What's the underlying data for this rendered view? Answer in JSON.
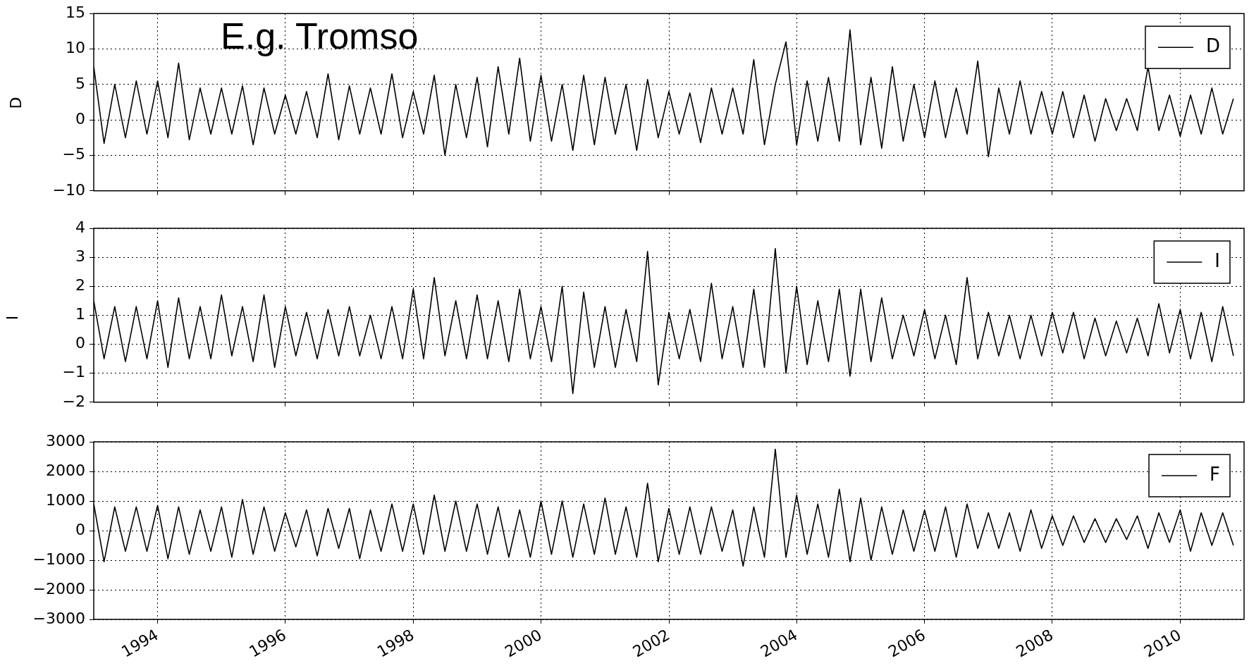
{
  "chart_data": [
    {
      "type": "line",
      "title": "E.g. Tromso",
      "ylabel": "D",
      "x": [
        "1993-01",
        "1993-03",
        "1993-05",
        "1993-07",
        "1993-09",
        "1993-11",
        "1994-01",
        "1994-03",
        "1994-05",
        "1994-07",
        "1994-09",
        "1994-11",
        "1995-01",
        "1995-03",
        "1995-05",
        "1995-07",
        "1995-09",
        "1995-11",
        "1996-01",
        "1996-03",
        "1996-05",
        "1996-07",
        "1996-09",
        "1996-11",
        "1997-01",
        "1997-03",
        "1997-05",
        "1997-07",
        "1997-09",
        "1997-11",
        "1998-01",
        "1998-03",
        "1998-05",
        "1998-07",
        "1998-09",
        "1998-11",
        "1999-01",
        "1999-03",
        "1999-05",
        "1999-07",
        "1999-09",
        "1999-11",
        "2000-01",
        "2000-03",
        "2000-05",
        "2000-07",
        "2000-09",
        "2000-11",
        "2001-01",
        "2001-03",
        "2001-05",
        "2001-07",
        "2001-09",
        "2001-11",
        "2002-01",
        "2002-03",
        "2002-05",
        "2002-07",
        "2002-09",
        "2002-11",
        "2003-01",
        "2003-03",
        "2003-05",
        "2003-07",
        "2003-09",
        "2003-11",
        "2004-01",
        "2004-03",
        "2004-05",
        "2004-07",
        "2004-09",
        "2004-11",
        "2005-01",
        "2005-03",
        "2005-05",
        "2005-07",
        "2005-09",
        "2005-11",
        "2006-01",
        "2006-03",
        "2006-05",
        "2006-07",
        "2006-09",
        "2006-11",
        "2007-01",
        "2007-03",
        "2007-05",
        "2007-07",
        "2007-09",
        "2007-11",
        "2008-01",
        "2008-03",
        "2008-05",
        "2008-07",
        "2008-09",
        "2008-11",
        "2009-01",
        "2009-03",
        "2009-05",
        "2009-07",
        "2009-09",
        "2009-11",
        "2010-01",
        "2010-03",
        "2010-05",
        "2010-07",
        "2010-09",
        "2010-11"
      ],
      "series": [
        {
          "name": "D",
          "color": "#000000",
          "values": [
            7.5,
            -3.3,
            5,
            -2.5,
            5.5,
            -2,
            5.5,
            -2.5,
            8,
            -2.8,
            4.5,
            -2,
            4.5,
            -2,
            4.8,
            -3.5,
            4.5,
            -2,
            3.5,
            -2,
            4,
            -2.5,
            6.5,
            -2.8,
            4.8,
            -2,
            4.5,
            -2,
            6.5,
            -2.5,
            4,
            -2,
            6.3,
            -5,
            5,
            -2.5,
            6,
            -3.8,
            7.5,
            -2,
            8.7,
            -3,
            6.3,
            -3,
            5,
            -4.3,
            6.3,
            -3.5,
            6,
            -2,
            5,
            -4.3,
            5.7,
            -2.5,
            4,
            -2,
            3.8,
            -3.2,
            4.5,
            -2,
            4.5,
            -2,
            8.5,
            -3.5,
            5,
            11,
            -3.5,
            5.5,
            -3,
            6,
            -3,
            12.7,
            -3.5,
            6,
            -4,
            7.5,
            -3,
            5,
            -2.5,
            5.5,
            -2.5,
            4.5,
            -2,
            8.3,
            -5.2,
            4.5,
            -2,
            5.5,
            -2,
            4,
            -2,
            4,
            -2.5,
            3.5,
            -3,
            3,
            -1.5,
            3,
            -1.5,
            7.5,
            -1.5,
            3.5,
            -2.3,
            3.5,
            -2,
            4.5,
            -2,
            3
          ]
        }
      ],
      "xlim": [
        "1993-01-01",
        "2011-01-01"
      ],
      "ylim": [
        -10,
        15
      ],
      "xticks": [
        "1994",
        "1996",
        "1998",
        "2000",
        "2002",
        "2004",
        "2006",
        "2008",
        "2010"
      ],
      "yticks": [
        {
          "value": -10,
          "label": "−10"
        },
        {
          "value": -5,
          "label": "−5"
        },
        0,
        5,
        10,
        15
      ],
      "grid": true,
      "legend": "top right",
      "tick_labels": "y"
    },
    {
      "type": "line",
      "ylabel": "I",
      "x": [
        "1993-01",
        "1993-03",
        "1993-05",
        "1993-07",
        "1993-09",
        "1993-11",
        "1994-01",
        "1994-03",
        "1994-05",
        "1994-07",
        "1994-09",
        "1994-11",
        "1995-01",
        "1995-03",
        "1995-05",
        "1995-07",
        "1995-09",
        "1995-11",
        "1996-01",
        "1996-03",
        "1996-05",
        "1996-07",
        "1996-09",
        "1996-11",
        "1997-01",
        "1997-03",
        "1997-05",
        "1997-07",
        "1997-09",
        "1997-11",
        "1998-01",
        "1998-03",
        "1998-05",
        "1998-07",
        "1998-09",
        "1998-11",
        "1999-01",
        "1999-03",
        "1999-05",
        "1999-07",
        "1999-09",
        "1999-11",
        "2000-01",
        "2000-03",
        "2000-05",
        "2000-07",
        "2000-09",
        "2000-11",
        "2001-01",
        "2001-03",
        "2001-05",
        "2001-07",
        "2001-09",
        "2001-11",
        "2002-01",
        "2002-03",
        "2002-05",
        "2002-07",
        "2002-09",
        "2002-11",
        "2003-01",
        "2003-03",
        "2003-05",
        "2003-07",
        "2003-09",
        "2003-11",
        "2004-01",
        "2004-03",
        "2004-05",
        "2004-07",
        "2004-09",
        "2004-11",
        "2005-01",
        "2005-03",
        "2005-05",
        "2005-07",
        "2005-09",
        "2005-11",
        "2006-01",
        "2006-03",
        "2006-05",
        "2006-07",
        "2006-09",
        "2006-11",
        "2007-01",
        "2007-03",
        "2007-05",
        "2007-07",
        "2007-09",
        "2007-11",
        "2008-01",
        "2008-03",
        "2008-05",
        "2008-07",
        "2008-09",
        "2008-11",
        "2009-01",
        "2009-03",
        "2009-05",
        "2009-07",
        "2009-09",
        "2009-11",
        "2010-01",
        "2010-03",
        "2010-05",
        "2010-07",
        "2010-09",
        "2010-11"
      ],
      "series": [
        {
          "name": "I",
          "color": "#000000",
          "values": [
            1.5,
            -0.5,
            1.3,
            -0.6,
            1.3,
            -0.5,
            1.5,
            -0.8,
            1.6,
            -0.5,
            1.3,
            -0.5,
            1.7,
            -0.4,
            1.3,
            -0.6,
            1.7,
            -0.8,
            1.3,
            -0.4,
            1.1,
            -0.5,
            1.2,
            -0.4,
            1.3,
            -0.4,
            1,
            -0.5,
            1.3,
            -0.5,
            1.9,
            -0.5,
            2.3,
            -0.4,
            1.5,
            -0.5,
            1.7,
            -0.5,
            1.5,
            -0.6,
            1.9,
            -0.5,
            1.3,
            -0.6,
            2,
            -1.7,
            1.8,
            -0.8,
            1.3,
            -0.8,
            1.2,
            -0.6,
            3.2,
            -1.4,
            1.1,
            -0.5,
            1.2,
            -0.6,
            2.1,
            -0.5,
            1.3,
            -0.8,
            1.9,
            -0.8,
            3.3,
            -1,
            2,
            -0.7,
            1.5,
            -0.6,
            1.9,
            -1.1,
            1.9,
            -0.6,
            1.6,
            -0.5,
            1,
            -0.4,
            1.2,
            -0.5,
            1,
            -0.7,
            2.3,
            -0.5,
            1.1,
            -0.4,
            1,
            -0.5,
            1,
            -0.4,
            1.1,
            -0.3,
            1.1,
            -0.5,
            0.9,
            -0.4,
            0.8,
            -0.3,
            0.9,
            -0.4,
            1.4,
            -0.3,
            1.2,
            -0.5,
            1.1,
            -0.6,
            1.3,
            -0.4
          ]
        }
      ],
      "xlim": [
        "1993-01-01",
        "2011-01-01"
      ],
      "ylim": [
        -2,
        4
      ],
      "xticks": [
        "1994",
        "1996",
        "1998",
        "2000",
        "2002",
        "2004",
        "2006",
        "2008",
        "2010"
      ],
      "yticks": [
        {
          "value": -2,
          "label": "−2"
        },
        {
          "value": -1,
          "label": "−1"
        },
        0,
        1,
        2,
        3,
        4
      ],
      "grid": true,
      "legend": "top right",
      "tick_labels": "y"
    },
    {
      "type": "line",
      "x": [
        "1993-01",
        "1993-03",
        "1993-05",
        "1993-07",
        "1993-09",
        "1993-11",
        "1994-01",
        "1994-03",
        "1994-05",
        "1994-07",
        "1994-09",
        "1994-11",
        "1995-01",
        "1995-03",
        "1995-05",
        "1995-07",
        "1995-09",
        "1995-11",
        "1996-01",
        "1996-03",
        "1996-05",
        "1996-07",
        "1996-09",
        "1996-11",
        "1997-01",
        "1997-03",
        "1997-05",
        "1997-07",
        "1997-09",
        "1997-11",
        "1998-01",
        "1998-03",
        "1998-05",
        "1998-07",
        "1998-09",
        "1998-11",
        "1999-01",
        "1999-03",
        "1999-05",
        "1999-07",
        "1999-09",
        "1999-11",
        "2000-01",
        "2000-03",
        "2000-05",
        "2000-07",
        "2000-09",
        "2000-11",
        "2001-01",
        "2001-03",
        "2001-05",
        "2001-07",
        "2001-09",
        "2001-11",
        "2002-01",
        "2002-03",
        "2002-05",
        "2002-07",
        "2002-09",
        "2002-11",
        "2003-01",
        "2003-03",
        "2003-05",
        "2003-07",
        "2003-09",
        "2003-11",
        "2004-01",
        "2004-03",
        "2004-05",
        "2004-07",
        "2004-09",
        "2004-11",
        "2005-01",
        "2005-03",
        "2005-05",
        "2005-07",
        "2005-09",
        "2005-11",
        "2006-01",
        "2006-03",
        "2006-05",
        "2006-07",
        "2006-09",
        "2006-11",
        "2007-01",
        "2007-03",
        "2007-05",
        "2007-07",
        "2007-09",
        "2007-11",
        "2008-01",
        "2008-03",
        "2008-05",
        "2008-07",
        "2008-09",
        "2008-11",
        "2009-01",
        "2009-03",
        "2009-05",
        "2009-07",
        "2009-09",
        "2009-11",
        "2010-01",
        "2010-03",
        "2010-05",
        "2010-07",
        "2010-09",
        "2010-11"
      ],
      "series": [
        {
          "name": "F",
          "color": "#000000",
          "values": [
            900,
            -1050,
            800,
            -700,
            800,
            -700,
            850,
            -950,
            800,
            -800,
            700,
            -700,
            800,
            -900,
            1050,
            -800,
            800,
            -700,
            600,
            -550,
            700,
            -850,
            750,
            -600,
            750,
            -950,
            700,
            -700,
            900,
            -700,
            900,
            -800,
            1200,
            -700,
            1000,
            -700,
            900,
            -800,
            800,
            -900,
            700,
            -900,
            1000,
            -800,
            1000,
            -900,
            900,
            -800,
            1100,
            -800,
            800,
            -900,
            1600,
            -1050,
            750,
            -800,
            800,
            -800,
            800,
            -700,
            700,
            -1200,
            800,
            -900,
            2750,
            -900,
            1200,
            -800,
            900,
            -900,
            1400,
            -1050,
            1100,
            -1000,
            800,
            -800,
            700,
            -700,
            700,
            -700,
            800,
            -900,
            900,
            -600,
            600,
            -600,
            600,
            -700,
            700,
            -600,
            500,
            -500,
            500,
            -400,
            400,
            -400,
            400,
            -300,
            500,
            -600,
            600,
            -400,
            700,
            -700,
            600,
            -500,
            600,
            -500
          ]
        }
      ],
      "xlim": [
        "1993-01-01",
        "2011-01-01"
      ],
      "ylim": [
        -3000,
        3000
      ],
      "xticks": [
        "1994",
        "1996",
        "1998",
        "2000",
        "2002",
        "2004",
        "2006",
        "2008",
        "2010"
      ],
      "yticks": [
        {
          "value": -3000,
          "label": "−3000"
        },
        {
          "value": -2000,
          "label": "−2000"
        },
        {
          "value": -1000,
          "label": "−1000"
        },
        0,
        1000,
        2000,
        3000
      ],
      "grid": true,
      "legend": "top right"
    }
  ]
}
